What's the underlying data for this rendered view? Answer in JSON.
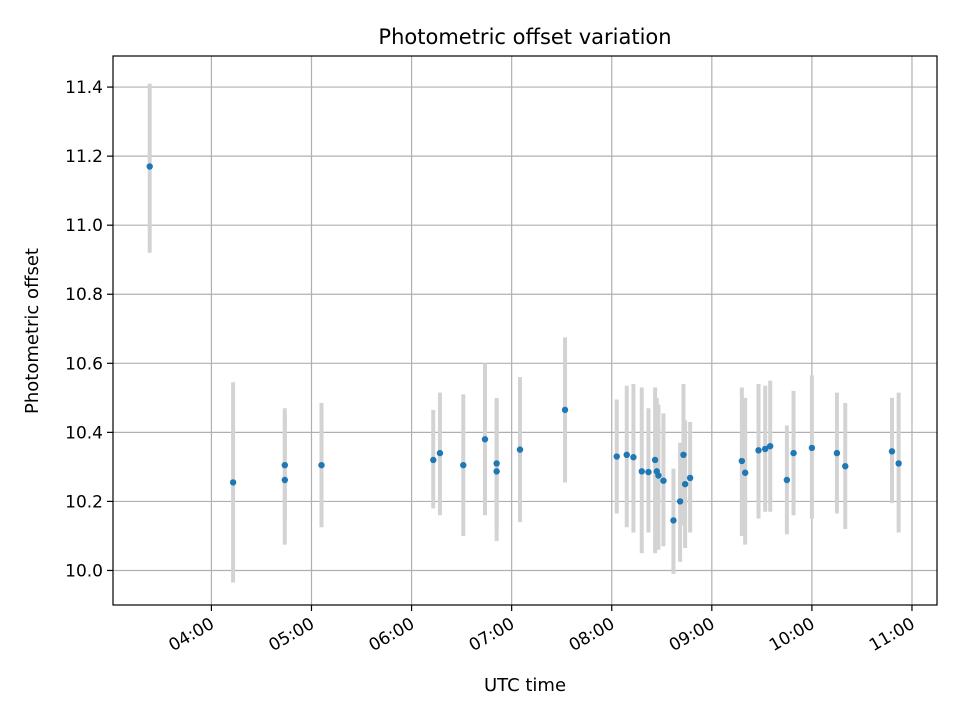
{
  "chart_data": {
    "type": "scatter",
    "title": "Photometric offset variation",
    "xlabel": "UTC time",
    "ylabel": "Photometric offset",
    "xlim": [
      "03:01",
      "11:15"
    ],
    "ylim": [
      9.9,
      11.49
    ],
    "x_ticks": [
      "04:00",
      "05:00",
      "06:00",
      "07:00",
      "08:00",
      "09:00",
      "10:00",
      "11:00"
    ],
    "y_ticks": [
      10.0,
      10.2,
      10.4,
      10.6,
      10.8,
      11.0,
      11.2,
      11.4
    ],
    "grid": true,
    "colors": {
      "point": "#1f77b4",
      "errorbar": "#d3d3d3",
      "grid": "#b0b0b0"
    },
    "points": [
      {
        "x": "03:23",
        "y": 11.17,
        "ylow": 10.92,
        "yhigh": 11.41
      },
      {
        "x": "04:13",
        "y": 10.255,
        "ylow": 9.965,
        "yhigh": 10.545
      },
      {
        "x": "04:44",
        "y": 10.305,
        "ylow": 10.145,
        "yhigh": 10.47
      },
      {
        "x": "04:44",
        "y": 10.262,
        "ylow": 10.075,
        "yhigh": 10.45
      },
      {
        "x": "05:06",
        "y": 10.305,
        "ylow": 10.125,
        "yhigh": 10.485
      },
      {
        "x": "06:13",
        "y": 10.32,
        "ylow": 10.18,
        "yhigh": 10.465
      },
      {
        "x": "06:17",
        "y": 10.34,
        "ylow": 10.16,
        "yhigh": 10.515
      },
      {
        "x": "06:31",
        "y": 10.305,
        "ylow": 10.1,
        "yhigh": 10.51
      },
      {
        "x": "06:44",
        "y": 10.38,
        "ylow": 10.16,
        "yhigh": 10.6
      },
      {
        "x": "06:51",
        "y": 10.31,
        "ylow": 10.12,
        "yhigh": 10.5
      },
      {
        "x": "06:51",
        "y": 10.287,
        "ylow": 10.085,
        "yhigh": 10.49
      },
      {
        "x": "07:05",
        "y": 10.35,
        "ylow": 10.14,
        "yhigh": 10.56
      },
      {
        "x": "07:32",
        "y": 10.465,
        "ylow": 10.255,
        "yhigh": 10.675
      },
      {
        "x": "08:03",
        "y": 10.33,
        "ylow": 10.165,
        "yhigh": 10.495
      },
      {
        "x": "08:09",
        "y": 10.335,
        "ylow": 10.125,
        "yhigh": 10.535
      },
      {
        "x": "08:13",
        "y": 10.328,
        "ylow": 10.11,
        "yhigh": 10.54
      },
      {
        "x": "08:18",
        "y": 10.287,
        "ylow": 10.05,
        "yhigh": 10.53
      },
      {
        "x": "08:22",
        "y": 10.285,
        "ylow": 10.11,
        "yhigh": 10.47
      },
      {
        "x": "08:26",
        "y": 10.32,
        "ylow": 10.05,
        "yhigh": 10.53
      },
      {
        "x": "08:27",
        "y": 10.287,
        "ylow": 10.065,
        "yhigh": 10.5
      },
      {
        "x": "08:28",
        "y": 10.275,
        "ylow": 10.06,
        "yhigh": 10.48
      },
      {
        "x": "08:31",
        "y": 10.26,
        "ylow": 10.07,
        "yhigh": 10.455
      },
      {
        "x": "08:37",
        "y": 10.145,
        "ylow": 9.99,
        "yhigh": 10.295
      },
      {
        "x": "08:41",
        "y": 10.2,
        "ylow": 10.025,
        "yhigh": 10.37
      },
      {
        "x": "08:43",
        "y": 10.335,
        "ylow": 10.13,
        "yhigh": 10.54
      },
      {
        "x": "08:44",
        "y": 10.25,
        "ylow": 10.065,
        "yhigh": 10.435
      },
      {
        "x": "08:47",
        "y": 10.268,
        "ylow": 10.11,
        "yhigh": 10.43
      },
      {
        "x": "09:18",
        "y": 10.317,
        "ylow": 10.1,
        "yhigh": 10.53
      },
      {
        "x": "09:20",
        "y": 10.283,
        "ylow": 10.075,
        "yhigh": 10.5
      },
      {
        "x": "09:28",
        "y": 10.348,
        "ylow": 10.15,
        "yhigh": 10.54
      },
      {
        "x": "09:32",
        "y": 10.352,
        "ylow": 10.17,
        "yhigh": 10.535
      },
      {
        "x": "09:35",
        "y": 10.36,
        "ylow": 10.17,
        "yhigh": 10.55
      },
      {
        "x": "09:45",
        "y": 10.262,
        "ylow": 10.105,
        "yhigh": 10.42
      },
      {
        "x": "09:49",
        "y": 10.34,
        "ylow": 10.16,
        "yhigh": 10.52
      },
      {
        "x": "10:00",
        "y": 10.355,
        "ylow": 10.15,
        "yhigh": 10.565
      },
      {
        "x": "10:15",
        "y": 10.34,
        "ylow": 10.165,
        "yhigh": 10.515
      },
      {
        "x": "10:20",
        "y": 10.302,
        "ylow": 10.12,
        "yhigh": 10.485
      },
      {
        "x": "10:48",
        "y": 10.345,
        "ylow": 10.195,
        "yhigh": 10.5
      },
      {
        "x": "10:52",
        "y": 10.31,
        "ylow": 10.11,
        "yhigh": 10.515
      }
    ]
  }
}
